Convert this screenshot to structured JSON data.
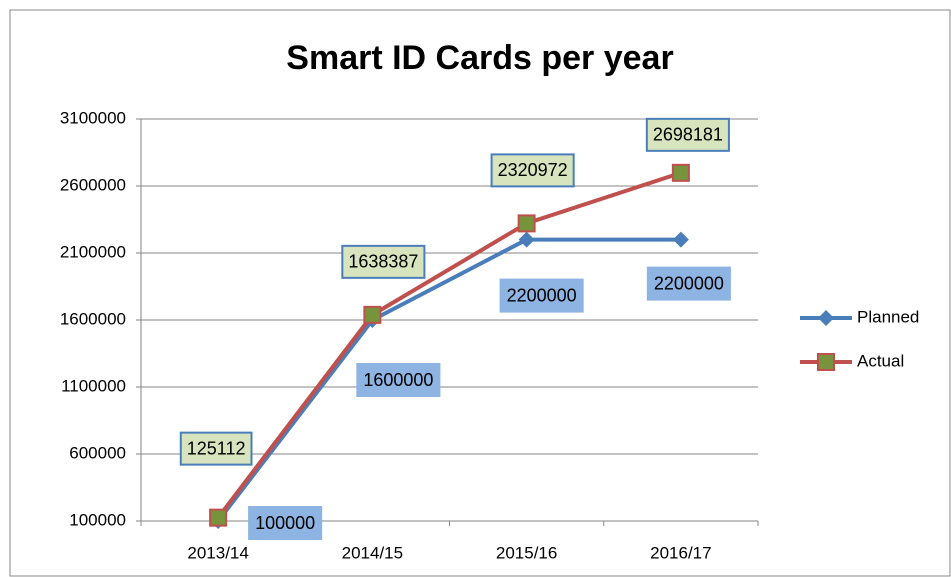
{
  "chart_data": {
    "type": "line",
    "title": "Smart ID Cards per year",
    "categories": [
      "2013/14",
      "2014/15",
      "2015/16",
      "2016/17"
    ],
    "series": [
      {
        "name": "Planned",
        "color": "#4a7ebb",
        "values": [
          100000,
          1600000,
          2200000,
          2200000
        ]
      },
      {
        "name": "Actual",
        "color": "#c0504d",
        "values": [
          125112,
          1638387,
          2320972,
          2698181
        ]
      }
    ],
    "ylim": [
      100000,
      3100000
    ],
    "yticks": [
      100000,
      600000,
      1100000,
      1600000,
      2100000,
      2600000,
      3100000
    ],
    "grid": true,
    "legend": "right"
  }
}
